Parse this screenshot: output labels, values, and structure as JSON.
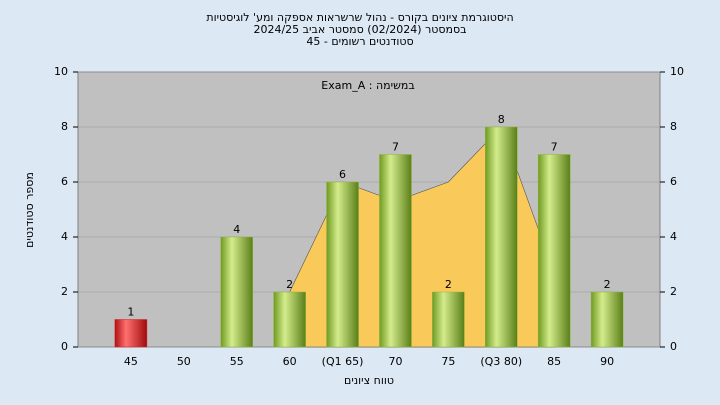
{
  "chart_data": {
    "type": "bar",
    "title": "היסטוגרמת ציונים בקורס - נהול שרשראות אספקה ומע' לוגיסטיות",
    "subtitle": "בסמסטר  (02/2024)  סמסטר אביב 2024/25",
    "subtitle2": "סטודנטים רשומים - 45",
    "annotation": "במשימה : Exam_A",
    "x_label": "טווח ציונים",
    "y_label": "מספר סטודנטים",
    "categories": [
      "45",
      "50",
      "55",
      "60",
      "(Q1 65)",
      "70",
      "75",
      "(Q3 80)",
      "85",
      "90"
    ],
    "series": [
      {
        "values": [
          1,
          0,
          4,
          2,
          6,
          7,
          2,
          8,
          7,
          2
        ],
        "colors": [
          "#d42020",
          "#8db53a",
          "#8db53a",
          "#8db53a",
          "#8db53a",
          "#8db53a",
          "#8db53a",
          "#8db53a",
          "#8db53a",
          "#8db53a"
        ]
      },
      {
        "values": [
          null,
          null,
          null,
          2,
          6,
          5.3,
          6,
          8,
          2.7,
          null
        ],
        "color": "#f9c95a"
      }
    ],
    "ylim": [
      0,
      10
    ],
    "yticks": [
      0,
      2,
      4,
      6,
      8,
      10
    ],
    "y2lim": [
      0,
      10
    ],
    "y2ticks": [
      0,
      2,
      4,
      6,
      8,
      10
    ],
    "grid": true
  }
}
